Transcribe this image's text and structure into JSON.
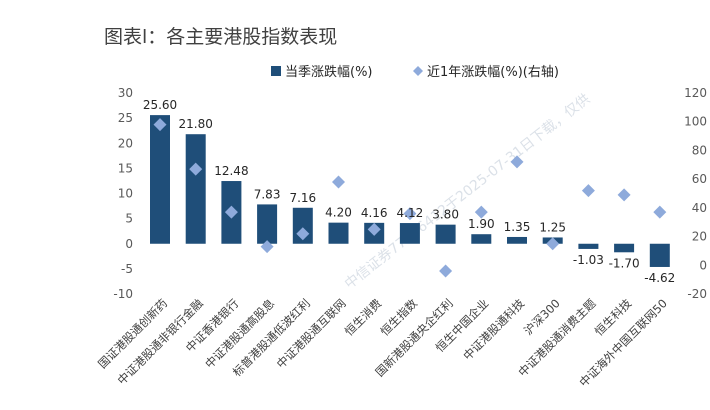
{
  "title": "图表l：各主要港股指数表现",
  "watermark": "中信证券77306412于2025-07-31日下载，仅供",
  "chart_data": {
    "type": "bar",
    "title": "图表l：各主要港股指数表现",
    "categories": [
      "国证港股通创新药",
      "中证港股通非银行金融",
      "中证香港银行",
      "中证港股通高股息",
      "标普港股通低波红利",
      "中证港股通互联网",
      "恒生消费",
      "恒生指数",
      "国新港股通央企红利",
      "恒生中国企业",
      "中证港股通科技",
      "沪深300",
      "中证港股通消费主题",
      "恒生科技",
      "中证海外中国互联网50"
    ],
    "series": [
      {
        "name": "当季涨跌幅(%)",
        "axis": "left",
        "color": "#1f4e79",
        "values": [
          25.6,
          21.8,
          12.48,
          7.83,
          7.16,
          4.2,
          4.16,
          4.12,
          3.8,
          1.9,
          1.35,
          1.25,
          -1.03,
          -1.7,
          -4.62
        ],
        "labels": [
          "25.60",
          "21.80",
          "12.48",
          "7.83",
          "7.16",
          "4.20",
          "4.16",
          "4.12",
          "3.80",
          "1.90",
          "1.35",
          "1.25",
          "-1.03",
          "-1.70",
          "-4.62"
        ]
      },
      {
        "name": "近1年涨跌幅(%)(右轴)",
        "axis": "right",
        "color": "#8eaadb",
        "values": [
          98,
          67,
          37,
          13,
          22,
          58,
          25,
          36,
          -4,
          37,
          72,
          15,
          52,
          49,
          37
        ]
      }
    ],
    "y_left": {
      "min": -10,
      "max": 30,
      "ticks": [
        "-10",
        "-5",
        "0",
        "5",
        "10",
        "15",
        "20",
        "25",
        "30"
      ]
    },
    "y_right": {
      "min": -20,
      "max": 120,
      "ticks": [
        "-20",
        "0",
        "20",
        "40",
        "60",
        "80",
        "100",
        "120"
      ]
    },
    "legend_position": "top-right"
  }
}
